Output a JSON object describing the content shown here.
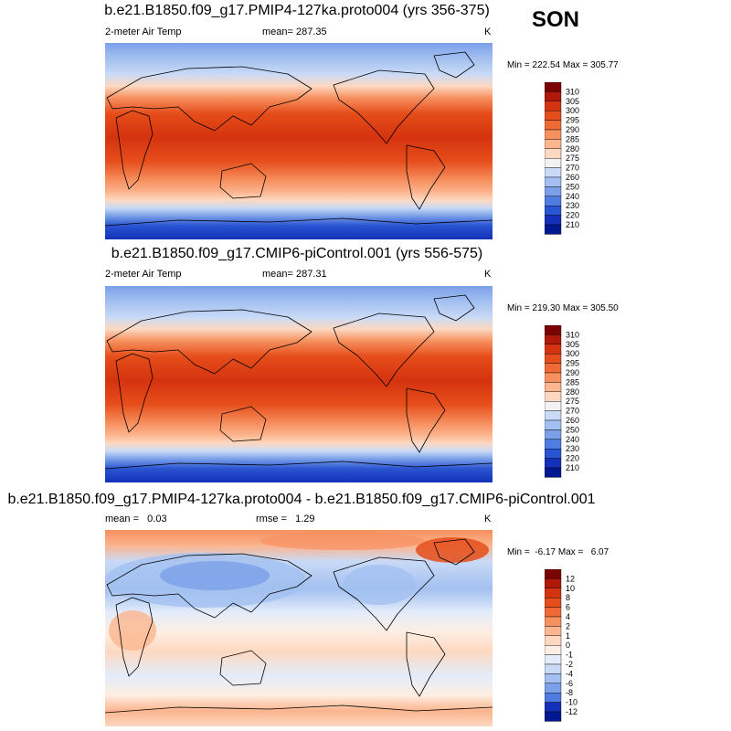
{
  "season": "SON",
  "panels": [
    {
      "title": "b.e21.B1850.f09_g17.PMIP4-127ka.proto004 (yrs 356-375)",
      "left_label": "2-meter Air Temp",
      "center_label": "mean= 287.35",
      "right_label": "K",
      "minmax": "Min = 222.54 Max = 305.77",
      "colorbar": {
        "labels": [
          "310",
          "305",
          "300",
          "295",
          "290",
          "285",
          "280",
          "275",
          "270",
          "260",
          "250",
          "240",
          "230",
          "220",
          "210"
        ],
        "colors": [
          "#7a0403",
          "#b0180a",
          "#d5330f",
          "#e54d1a",
          "#f06a36",
          "#f7905f",
          "#fbb58f",
          "#fdd8c0",
          "#f2f2f2",
          "#c9daf6",
          "#a3c0f0",
          "#7ba0e8",
          "#4e7ce0",
          "#2a55d2",
          "#1430b8",
          "#001890"
        ]
      }
    },
    {
      "title": "b.e21.B1850.f09_g17.CMIP6-piControl.001 (yrs 556-575)",
      "left_label": "2-meter Air Temp",
      "center_label": "mean= 287.31",
      "right_label": "K",
      "minmax": "Min = 219.30 Max = 305.50",
      "colorbar": {
        "labels": [
          "310",
          "305",
          "300",
          "295",
          "290",
          "285",
          "280",
          "275",
          "270",
          "260",
          "250",
          "240",
          "230",
          "220",
          "210"
        ],
        "colors": [
          "#7a0403",
          "#b0180a",
          "#d5330f",
          "#e54d1a",
          "#f06a36",
          "#f7905f",
          "#fbb58f",
          "#fdd8c0",
          "#f2f2f2",
          "#c9daf6",
          "#a3c0f0",
          "#7ba0e8",
          "#4e7ce0",
          "#2a55d2",
          "#1430b8",
          "#001890"
        ]
      }
    },
    {
      "title": "b.e21.B1850.f09_g17.PMIP4-127ka.proto004 - b.e21.B1850.f09_g17.CMIP6-piControl.001",
      "left_label": "mean =   0.03",
      "center_label": "rmse =   1.29",
      "right_label": "K",
      "minmax": "Min =  -6.17 Max =   6.07",
      "colorbar": {
        "labels": [
          "12",
          "10",
          "8",
          "6",
          "4",
          "2",
          "1",
          "0",
          "-1",
          "-2",
          "-4",
          "-6",
          "-8",
          "-10",
          "-12"
        ],
        "colors": [
          "#7a0403",
          "#b0180a",
          "#d5330f",
          "#e54d1a",
          "#f06a36",
          "#f7905f",
          "#fbb58f",
          "#fdd8c0",
          "#fdeee3",
          "#e3ecfb",
          "#c9daf6",
          "#a3c0f0",
          "#7ba0e8",
          "#4e7ce0",
          "#1430b8",
          "#001890"
        ]
      }
    }
  ],
  "chart_data": [
    {
      "type": "heatmap",
      "title": "b.e21.B1850.f09_g17.PMIP4-127ka.proto004 (yrs 356-375)",
      "variable": "2-meter Air Temp",
      "units": "K",
      "mean": 287.35,
      "min": 222.54,
      "max": 305.77,
      "levels": [
        210,
        220,
        230,
        240,
        250,
        260,
        270,
        275,
        280,
        285,
        290,
        295,
        300,
        305,
        310
      ]
    },
    {
      "type": "heatmap",
      "title": "b.e21.B1850.f09_g17.CMIP6-piControl.001 (yrs 556-575)",
      "variable": "2-meter Air Temp",
      "units": "K",
      "mean": 287.31,
      "min": 219.3,
      "max": 305.5,
      "levels": [
        210,
        220,
        230,
        240,
        250,
        260,
        270,
        275,
        280,
        285,
        290,
        295,
        300,
        305,
        310
      ]
    },
    {
      "type": "heatmap",
      "title": "b.e21.B1850.f09_g17.PMIP4-127ka.proto004 - b.e21.B1850.f09_g17.CMIP6-piControl.001",
      "units": "K",
      "mean": 0.03,
      "rmse": 1.29,
      "min": -6.17,
      "max": 6.07,
      "levels": [
        -12,
        -10,
        -8,
        -6,
        -4,
        -2,
        -1,
        0,
        1,
        2,
        4,
        6,
        8,
        10,
        12
      ]
    }
  ]
}
